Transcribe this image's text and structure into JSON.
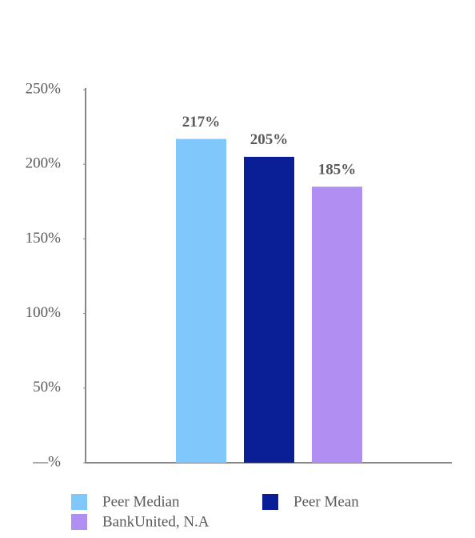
{
  "chart_data": {
    "type": "bar",
    "series": [
      {
        "name": "Peer Median",
        "color": "#80c8fc",
        "values": [
          217
        ],
        "value_labels": [
          "217%"
        ]
      },
      {
        "name": "Peer Mean",
        "color": "#0a1e96",
        "values": [
          205
        ],
        "value_labels": [
          "205%"
        ]
      },
      {
        "name": "BankUnited, N.A",
        "color": "#b18ff2",
        "values": [
          185
        ],
        "value_labels": [
          "185%"
        ]
      }
    ],
    "ylim": [
      0,
      250
    ],
    "yticks": [
      {
        "value": 0,
        "label": "—%"
      },
      {
        "value": 50,
        "label": "50%"
      },
      {
        "value": 100,
        "label": "100%"
      },
      {
        "value": 150,
        "label": "150%"
      },
      {
        "value": 200,
        "label": "200%"
      },
      {
        "value": 250,
        "label": "250%"
      }
    ],
    "legend": "bottom"
  }
}
